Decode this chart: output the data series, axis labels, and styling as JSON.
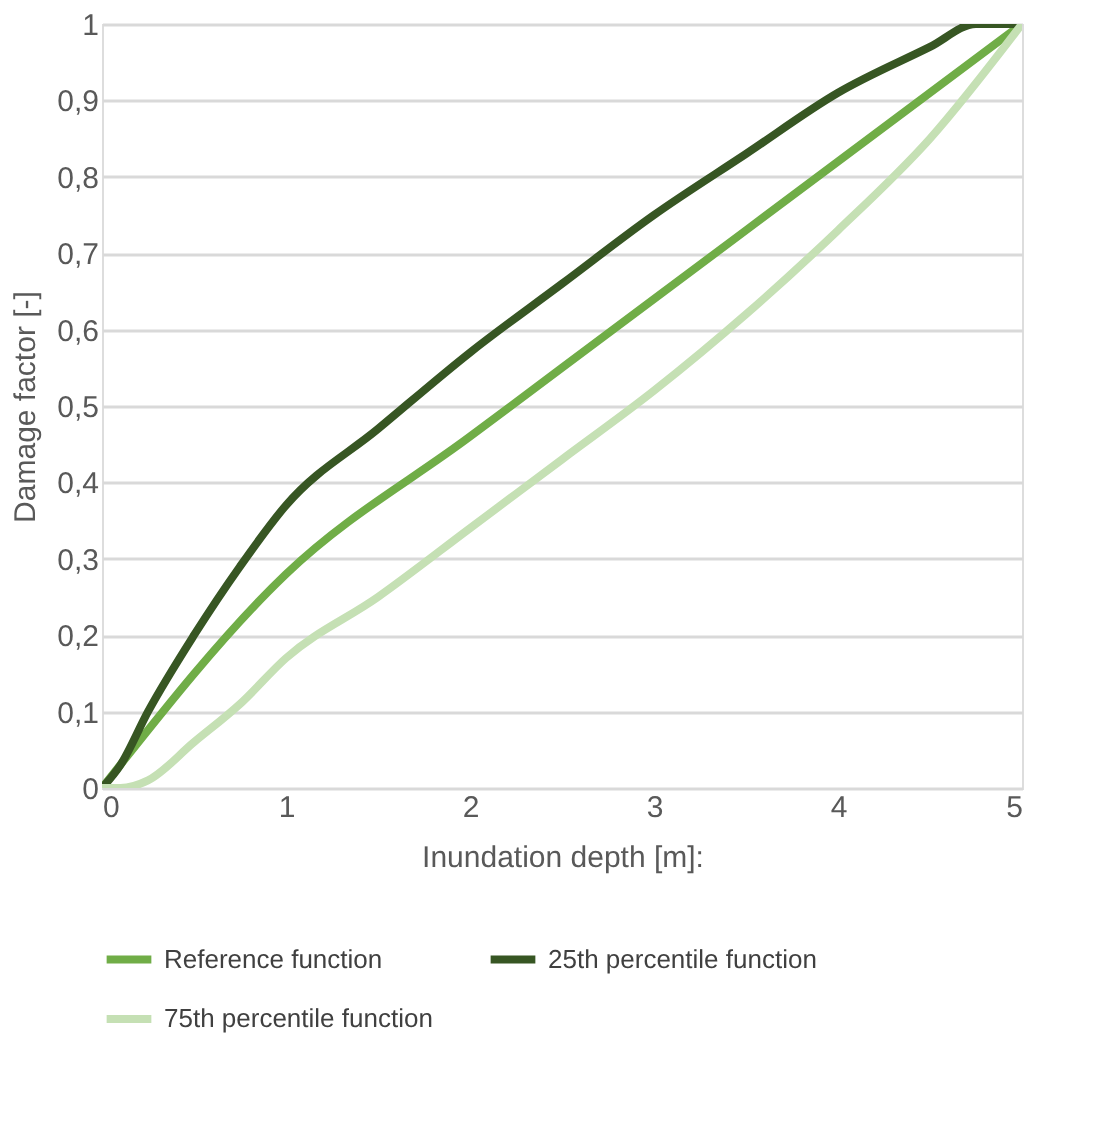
{
  "chart_data": {
    "type": "line",
    "xlabel": "Inundation depth [m]:",
    "ylabel": "Damage factor [-]",
    "xlim": [
      0,
      5
    ],
    "xticks": [
      0,
      1,
      2,
      3,
      4,
      5
    ],
    "ylim": [
      0,
      1
    ],
    "yticks": [
      0,
      {
        "value": 0.1,
        "label": "0,1"
      },
      {
        "value": 0.2,
        "label": "0,2"
      },
      {
        "value": 0.3,
        "label": "0,3"
      },
      {
        "value": 0.4,
        "label": "0,4"
      },
      {
        "value": 0.5,
        "label": "0,5"
      },
      {
        "value": 0.6,
        "label": "0,6"
      },
      {
        "value": 0.7,
        "label": "0,7"
      },
      {
        "value": 0.8,
        "label": "0,8"
      },
      {
        "value": 0.9,
        "label": "0,9"
      },
      1
    ],
    "grid": "y",
    "legend": "bottom",
    "marker": "none",
    "line_style": "solid",
    "series": [
      {
        "name": "Reference function",
        "color": "#70ad47",
        "x": [
          0,
          1,
          2,
          3,
          4,
          5
        ],
        "values": [
          0,
          0.28,
          0.46,
          0.64,
          0.82,
          1
        ]
      },
      {
        "name": "25th percentile function",
        "color": "#375623",
        "x": [
          0,
          0.1,
          0.25,
          0.5,
          0.75,
          1,
          1.5,
          2,
          2.5,
          3,
          3.5,
          4,
          4.5,
          4.75,
          5
        ],
        "values": [
          0,
          0.03,
          0.1,
          0.2,
          0.29,
          0.37,
          0.47,
          0.57,
          0.66,
          0.75,
          0.83,
          0.91,
          0.97,
          1.0,
          1.0
        ]
      },
      {
        "name": "75th percentile function",
        "color": "#c5e0b4",
        "x": [
          0,
          0.1,
          0.25,
          0.5,
          0.75,
          1,
          1.5,
          2,
          2.5,
          3,
          3.5,
          4,
          4.5,
          5
        ],
        "values": [
          0,
          0,
          0.01,
          0.06,
          0.11,
          0.17,
          0.25,
          0.34,
          0.43,
          0.52,
          0.62,
          0.73,
          0.85,
          1
        ]
      }
    ]
  }
}
